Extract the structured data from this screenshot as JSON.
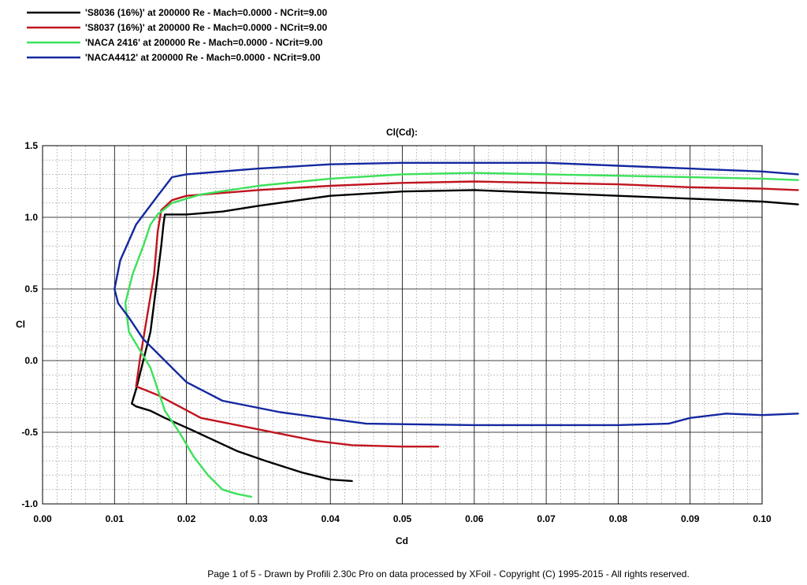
{
  "chart_data": {
    "type": "line",
    "title": "Cl(Cd):",
    "xlabel": "Cd",
    "ylabel": "Cl",
    "xlim": [
      0.0,
      0.1
    ],
    "ylim": [
      -1.0,
      1.5
    ],
    "grid": true,
    "legend_position": "top-left",
    "x_ticks": [
      "0.00",
      "0.01",
      "0.02",
      "0.03",
      "0.04",
      "0.05",
      "0.06",
      "0.07",
      "0.08",
      "0.09",
      "0.10"
    ],
    "y_ticks": [
      "1.5",
      "1.0",
      "0.5",
      "0.0",
      "-0.5",
      "-1.0"
    ],
    "series": [
      {
        "name": "'S8036 (16%)' at 200000 Re - Mach=0.0000 - NCrit=9.00",
        "color": "#000000",
        "points": [
          [
            0.043,
            -0.84
          ],
          [
            0.04,
            -0.83
          ],
          [
            0.036,
            -0.78
          ],
          [
            0.031,
            -0.7
          ],
          [
            0.027,
            -0.63
          ],
          [
            0.024,
            -0.56
          ],
          [
            0.021,
            -0.49
          ],
          [
            0.017,
            -0.4
          ],
          [
            0.015,
            -0.35
          ],
          [
            0.013,
            -0.32
          ],
          [
            0.0124,
            -0.3
          ],
          [
            0.013,
            -0.2
          ],
          [
            0.014,
            0.0
          ],
          [
            0.015,
            0.2
          ],
          [
            0.0155,
            0.4
          ],
          [
            0.016,
            0.6
          ],
          [
            0.0165,
            0.8
          ],
          [
            0.0168,
            0.95
          ],
          [
            0.017,
            1.02
          ],
          [
            0.02,
            1.02
          ],
          [
            0.025,
            1.04
          ],
          [
            0.03,
            1.08
          ],
          [
            0.04,
            1.15
          ],
          [
            0.05,
            1.18
          ],
          [
            0.06,
            1.19
          ],
          [
            0.07,
            1.17
          ],
          [
            0.08,
            1.15
          ],
          [
            0.09,
            1.13
          ],
          [
            0.1,
            1.11
          ],
          [
            0.105,
            1.09
          ]
        ]
      },
      {
        "name": "'S8037 (16%)' at 200000 Re - Mach=0.0000 - NCrit=9.00",
        "color": "#c0141e",
        "points": [
          [
            0.055,
            -0.6
          ],
          [
            0.05,
            -0.6
          ],
          [
            0.043,
            -0.59
          ],
          [
            0.038,
            -0.56
          ],
          [
            0.033,
            -0.51
          ],
          [
            0.028,
            -0.46
          ],
          [
            0.022,
            -0.4
          ],
          [
            0.019,
            -0.32
          ],
          [
            0.016,
            -0.24
          ],
          [
            0.014,
            -0.2
          ],
          [
            0.013,
            -0.18
          ],
          [
            0.0135,
            0.0
          ],
          [
            0.0145,
            0.3
          ],
          [
            0.0155,
            0.6
          ],
          [
            0.016,
            0.9
          ],
          [
            0.0165,
            1.05
          ],
          [
            0.018,
            1.12
          ],
          [
            0.02,
            1.15
          ],
          [
            0.03,
            1.19
          ],
          [
            0.04,
            1.22
          ],
          [
            0.05,
            1.24
          ],
          [
            0.06,
            1.25
          ],
          [
            0.07,
            1.24
          ],
          [
            0.08,
            1.23
          ],
          [
            0.09,
            1.21
          ],
          [
            0.1,
            1.2
          ],
          [
            0.105,
            1.19
          ]
        ]
      },
      {
        "name": "'NACA 2416' at 200000 Re - Mach=0.0000 - NCrit=9.00",
        "color": "#3ce15a",
        "points": [
          [
            0.029,
            -0.95
          ],
          [
            0.027,
            -0.93
          ],
          [
            0.025,
            -0.9
          ],
          [
            0.023,
            -0.8
          ],
          [
            0.021,
            -0.67
          ],
          [
            0.019,
            -0.5
          ],
          [
            0.017,
            -0.35
          ],
          [
            0.016,
            -0.2
          ],
          [
            0.015,
            -0.05
          ],
          [
            0.012,
            0.2
          ],
          [
            0.0115,
            0.4
          ],
          [
            0.0125,
            0.6
          ],
          [
            0.014,
            0.8
          ],
          [
            0.015,
            0.95
          ],
          [
            0.016,
            1.02
          ],
          [
            0.018,
            1.1
          ],
          [
            0.022,
            1.16
          ],
          [
            0.03,
            1.22
          ],
          [
            0.04,
            1.27
          ],
          [
            0.05,
            1.3
          ],
          [
            0.06,
            1.31
          ],
          [
            0.07,
            1.3
          ],
          [
            0.08,
            1.29
          ],
          [
            0.09,
            1.28
          ],
          [
            0.1,
            1.27
          ],
          [
            0.105,
            1.26
          ]
        ]
      },
      {
        "name": "'NACA4412' at 200000 Re - Mach=0.0000 - NCrit=9.00",
        "color": "#1428a0",
        "points": [
          [
            0.105,
            -0.37
          ],
          [
            0.1,
            -0.38
          ],
          [
            0.095,
            -0.37
          ],
          [
            0.09,
            -0.4
          ],
          [
            0.087,
            -0.44
          ],
          [
            0.08,
            -0.45
          ],
          [
            0.06,
            -0.45
          ],
          [
            0.045,
            -0.44
          ],
          [
            0.033,
            -0.36
          ],
          [
            0.025,
            -0.28
          ],
          [
            0.02,
            -0.15
          ],
          [
            0.017,
            0.0
          ],
          [
            0.014,
            0.15
          ],
          [
            0.012,
            0.3
          ],
          [
            0.0105,
            0.4
          ],
          [
            0.01,
            0.5
          ],
          [
            0.0108,
            0.7
          ],
          [
            0.013,
            0.95
          ],
          [
            0.016,
            1.15
          ],
          [
            0.018,
            1.28
          ],
          [
            0.02,
            1.3
          ],
          [
            0.03,
            1.34
          ],
          [
            0.04,
            1.37
          ],
          [
            0.05,
            1.38
          ],
          [
            0.06,
            1.38
          ],
          [
            0.07,
            1.38
          ],
          [
            0.08,
            1.36
          ],
          [
            0.09,
            1.34
          ],
          [
            0.1,
            1.32
          ],
          [
            0.105,
            1.3
          ]
        ]
      }
    ]
  },
  "footer": "Page 1 of 5   -   Drawn by Profili 2.30c Pro on data processed by  XFoil - Copyright (C) 1995-2015 - All rights reserved."
}
